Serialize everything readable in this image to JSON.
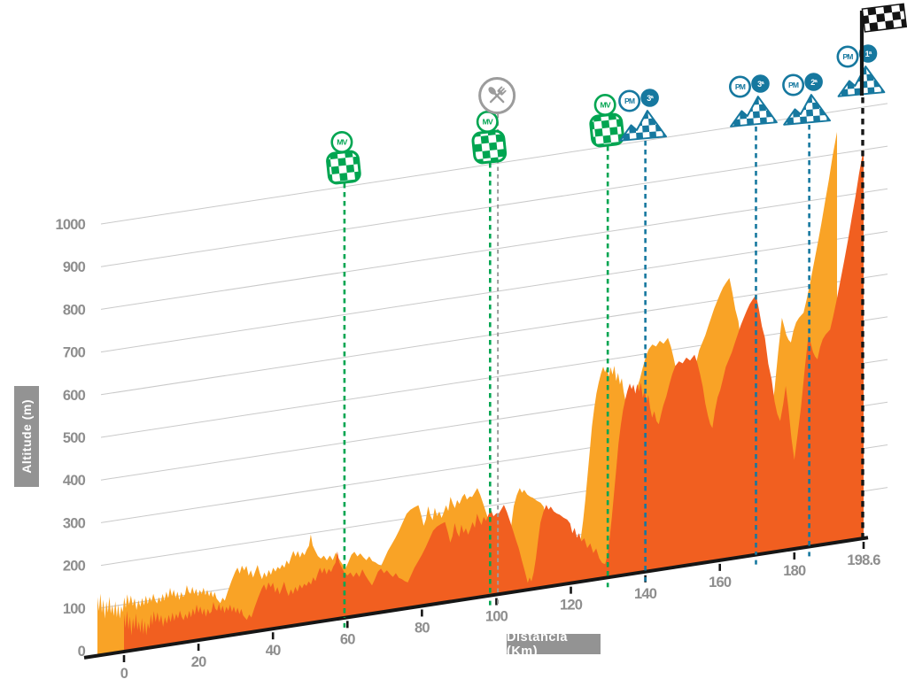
{
  "chart_data": {
    "type": "area",
    "title": "",
    "xlabel": "Distância (Km)",
    "ylabel": "Altitude (m)",
    "x_ticks": [
      0,
      20,
      40,
      60,
      80,
      100,
      120,
      140,
      160,
      180
    ],
    "x_end_label": "198.6",
    "x_max": 198.6,
    "y_ticks": [
      0,
      100,
      200,
      300,
      400,
      500,
      600,
      700,
      800,
      900,
      1000
    ],
    "ylim": [
      0,
      1100
    ],
    "grid": true,
    "series": [
      {
        "name": "elevation-profile",
        "units": {
          "x": "km",
          "y": "m"
        },
        "points": [
          [
            0,
            88
          ],
          [
            0.4,
            55
          ],
          [
            0.8,
            95
          ],
          [
            1.2,
            50
          ],
          [
            1.6,
            80
          ],
          [
            2,
            35
          ],
          [
            2.4,
            75
          ],
          [
            2.8,
            48
          ],
          [
            3.2,
            85
          ],
          [
            3.6,
            45
          ],
          [
            4,
            65
          ],
          [
            4.4,
            38
          ],
          [
            4.8,
            72
          ],
          [
            5.2,
            34
          ],
          [
            5.6,
            64
          ],
          [
            6,
            30
          ],
          [
            6.4,
            58
          ],
          [
            6.8,
            44
          ],
          [
            7.2,
            78
          ],
          [
            7.6,
            52
          ],
          [
            8,
            84
          ],
          [
            8.5,
            58
          ],
          [
            9,
            80
          ],
          [
            9.5,
            55
          ],
          [
            10,
            72
          ],
          [
            10.5,
            44
          ],
          [
            11,
            66
          ],
          [
            11.5,
            50
          ],
          [
            12,
            70
          ],
          [
            12.5,
            52
          ],
          [
            13,
            74
          ],
          [
            13.5,
            54
          ],
          [
            14,
            70
          ],
          [
            14.5,
            58
          ],
          [
            15,
            76
          ],
          [
            15.5,
            60
          ],
          [
            16,
            52
          ],
          [
            16.5,
            66
          ],
          [
            17,
            54
          ],
          [
            17.5,
            72
          ],
          [
            18,
            56
          ],
          [
            18.5,
            76
          ],
          [
            19,
            60
          ],
          [
            19.5,
            84
          ],
          [
            20,
            64
          ],
          [
            20.5,
            78
          ],
          [
            21,
            58
          ],
          [
            21.5,
            72
          ],
          [
            22,
            52
          ],
          [
            22.5,
            70
          ],
          [
            23,
            58
          ],
          [
            23.5,
            62
          ],
          [
            24,
            84
          ],
          [
            24.5,
            68
          ],
          [
            25,
            62
          ],
          [
            25.5,
            78
          ],
          [
            26,
            60
          ],
          [
            26.5,
            72
          ],
          [
            27,
            54
          ],
          [
            27.5,
            68
          ],
          [
            28,
            58
          ],
          [
            28.5,
            72
          ],
          [
            29,
            54
          ],
          [
            29.5,
            66
          ],
          [
            30,
            50
          ],
          [
            30.5,
            62
          ],
          [
            31,
            46
          ],
          [
            31.5,
            58
          ],
          [
            32,
            42
          ],
          [
            32.5,
            36
          ],
          [
            33,
            30
          ],
          [
            33.6,
            42
          ],
          [
            34.2,
            34
          ],
          [
            35,
            55
          ],
          [
            36,
            78
          ],
          [
            37,
            98
          ],
          [
            37.6,
            107
          ],
          [
            38.2,
            92
          ],
          [
            38.8,
            110
          ],
          [
            39.4,
            98
          ],
          [
            40,
            108
          ],
          [
            40.6,
            84
          ],
          [
            41.2,
            96
          ],
          [
            41.8,
            78
          ],
          [
            42.4,
            92
          ],
          [
            43,
            106
          ],
          [
            43.6,
            86
          ],
          [
            44.2,
            71
          ],
          [
            44.8,
            86
          ],
          [
            45.4,
            74
          ],
          [
            46,
            90
          ],
          [
            46.6,
            78
          ],
          [
            47.2,
            94
          ],
          [
            47.8,
            84
          ],
          [
            48.4,
            94
          ],
          [
            49,
            88
          ],
          [
            49.6,
            98
          ],
          [
            50.2,
            90
          ],
          [
            50.8,
            106
          ],
          [
            51.4,
            96
          ],
          [
            52,
            112
          ],
          [
            52.6,
            126
          ],
          [
            53.2,
            112
          ],
          [
            53.8,
            124
          ],
          [
            54.4,
            108
          ],
          [
            55,
            120
          ],
          [
            55.6,
            112
          ],
          [
            56.2,
            124
          ],
          [
            56.8,
            132
          ],
          [
            57.3,
            158
          ],
          [
            57.8,
            132
          ],
          [
            58.4,
            120
          ],
          [
            59.2,
            105
          ],
          [
            60,
            98
          ],
          [
            60.8,
            104
          ],
          [
            61.6,
            92
          ],
          [
            62.4,
            102
          ],
          [
            63.2,
            90
          ],
          [
            64,
            107
          ],
          [
            64.8,
            92
          ],
          [
            65.6,
            80
          ],
          [
            66.6,
            66
          ],
          [
            67.4,
            80
          ],
          [
            68.2,
            96
          ],
          [
            69,
            102
          ],
          [
            69.8,
            90
          ],
          [
            70.6,
            96
          ],
          [
            71.4,
            86
          ],
          [
            72.2,
            78
          ],
          [
            73,
            86
          ],
          [
            73.8,
            74
          ],
          [
            74.6,
            70
          ],
          [
            75.4,
            64
          ],
          [
            76.2,
            60
          ],
          [
            77,
            74
          ],
          [
            78,
            92
          ],
          [
            79,
            106
          ],
          [
            80,
            120
          ],
          [
            81,
            136
          ],
          [
            82,
            154
          ],
          [
            83,
            172
          ],
          [
            84,
            180
          ],
          [
            85,
            184
          ],
          [
            86.2,
            188
          ],
          [
            87,
            162
          ],
          [
            87.6,
            138
          ],
          [
            88.2,
            152
          ],
          [
            88.8,
            182
          ],
          [
            89.4,
            160
          ],
          [
            90,
            148
          ],
          [
            90.6,
            176
          ],
          [
            91.2,
            156
          ],
          [
            91.8,
            166
          ],
          [
            92.4,
            150
          ],
          [
            93,
            162
          ],
          [
            93.6,
            178
          ],
          [
            94.2,
            164
          ],
          [
            94.8,
            196
          ],
          [
            95.4,
            180
          ],
          [
            96,
            168
          ],
          [
            96.6,
            186
          ],
          [
            97.2,
            176
          ],
          [
            98,
            192
          ],
          [
            98.6,
            198
          ],
          [
            99.2,
            184
          ],
          [
            100,
            190
          ],
          [
            100.6,
            188
          ],
          [
            101.2,
            196
          ],
          [
            102,
            207
          ],
          [
            102.8,
            190
          ],
          [
            103.6,
            168
          ],
          [
            104.4,
            146
          ],
          [
            105.2,
            122
          ],
          [
            106,
            100
          ],
          [
            106.8,
            72
          ],
          [
            107.6,
            45
          ],
          [
            108.4,
            16
          ],
          [
            108.9,
            28
          ],
          [
            109.4,
            18
          ],
          [
            110,
            38
          ],
          [
            110.6,
            70
          ],
          [
            111.2,
            112
          ],
          [
            111.8,
            152
          ],
          [
            112.6,
            176
          ],
          [
            113.4,
            192
          ],
          [
            114,
            180
          ],
          [
            114.6,
            186
          ],
          [
            115.4,
            174
          ],
          [
            116.2,
            168
          ],
          [
            117,
            164
          ],
          [
            118,
            156
          ],
          [
            119,
            150
          ],
          [
            119.8,
            140
          ],
          [
            120.4,
            116
          ],
          [
            121,
            128
          ],
          [
            121.6,
            104
          ],
          [
            122.2,
            114
          ],
          [
            122.8,
            94
          ],
          [
            123.6,
            100
          ],
          [
            124.4,
            76
          ],
          [
            125.2,
            86
          ],
          [
            126,
            62
          ],
          [
            126.8,
            72
          ],
          [
            127.6,
            48
          ],
          [
            128.4,
            36
          ],
          [
            129.2,
            32
          ],
          [
            129.8,
            52
          ],
          [
            130.4,
            92
          ],
          [
            131,
            140
          ],
          [
            131.6,
            196
          ],
          [
            132.2,
            252
          ],
          [
            132.8,
            310
          ],
          [
            133.4,
            352
          ],
          [
            134,
            386
          ],
          [
            134.6,
            410
          ],
          [
            135.2,
            430
          ],
          [
            135.8,
            446
          ],
          [
            136.3,
            432
          ],
          [
            136.8,
            442
          ],
          [
            137.3,
            420
          ],
          [
            137.8,
            442
          ],
          [
            138.3,
            424
          ],
          [
            138.8,
            444
          ],
          [
            139.3,
            408
          ],
          [
            139.8,
            426
          ],
          [
            140.3,
            398
          ],
          [
            140.8,
            412
          ],
          [
            141.3,
            380
          ],
          [
            141.8,
            358
          ],
          [
            142.4,
            372
          ],
          [
            143,
            348
          ],
          [
            143.6,
            340
          ],
          [
            144.2,
            362
          ],
          [
            144.8,
            382
          ],
          [
            145.6,
            402
          ],
          [
            146.4,
            428
          ],
          [
            147.2,
            452
          ],
          [
            148,
            470
          ],
          [
            149,
            480
          ],
          [
            150,
            474
          ],
          [
            151,
            486
          ],
          [
            152,
            478
          ],
          [
            153.2,
            490
          ],
          [
            154,
            468
          ],
          [
            154.7,
            442
          ],
          [
            155.4,
            412
          ],
          [
            156.1,
            372
          ],
          [
            156.8,
            342
          ],
          [
            157.4,
            322
          ],
          [
            158,
            312
          ],
          [
            158.7,
            352
          ],
          [
            159.4,
            382
          ],
          [
            160.1,
            398
          ],
          [
            160.8,
            422
          ],
          [
            161.6,
            450
          ],
          [
            162.4,
            466
          ],
          [
            163.2,
            482
          ],
          [
            164,
            502
          ],
          [
            164.8,
            522
          ],
          [
            165.6,
            542
          ],
          [
            166.4,
            558
          ],
          [
            167.2,
            574
          ],
          [
            168,
            588
          ],
          [
            168.8,
            598
          ],
          [
            169.7,
            608
          ],
          [
            170.5,
            572
          ],
          [
            171.3,
            532
          ],
          [
            172.1,
            504
          ],
          [
            173,
            442
          ],
          [
            173.9,
            404
          ],
          [
            174.7,
            352
          ],
          [
            175.4,
            322
          ],
          [
            176.2,
            304
          ],
          [
            177,
            342
          ],
          [
            177.7,
            384
          ],
          [
            178.4,
            332
          ],
          [
            179.2,
            262
          ],
          [
            180,
            208
          ],
          [
            180.9,
            268
          ],
          [
            181.8,
            330
          ],
          [
            182.8,
            418
          ],
          [
            183.8,
            496
          ],
          [
            184.5,
            472
          ],
          [
            185,
            454
          ],
          [
            185.6,
            442
          ],
          [
            186.2,
            435
          ],
          [
            186.9,
            462
          ],
          [
            187.6,
            480
          ],
          [
            188.4,
            490
          ],
          [
            189.6,
            500
          ],
          [
            190.4,
            528
          ],
          [
            191.4,
            568
          ],
          [
            192.4,
            612
          ],
          [
            193.4,
            656
          ],
          [
            194.4,
            702
          ],
          [
            195.4,
            752
          ],
          [
            196.4,
            802
          ],
          [
            197.4,
            856
          ],
          [
            198.6,
            911
          ]
        ]
      }
    ],
    "markers": [
      {
        "kind": "sprint",
        "label": "MV",
        "km": 59.2,
        "icon_y": 189
      },
      {
        "kind": "sprint",
        "label": "MV",
        "km": 98.3,
        "icon_y": 166
      },
      {
        "kind": "feed",
        "km": 100.4,
        "icon_y": 108
      },
      {
        "kind": "sprint",
        "label": "MV",
        "km": 129.9,
        "icon_y": 147
      },
      {
        "kind": "climb",
        "label": "PM",
        "category": "3ª",
        "km": 140,
        "icon_y": 157
      },
      {
        "kind": "climb",
        "label": "PM",
        "category": "3ª",
        "km": 169.7,
        "icon_y": 141
      },
      {
        "kind": "climb",
        "label": "PM",
        "category": "2ª",
        "km": 184,
        "icon_y": 139
      },
      {
        "kind": "climb",
        "label": "PM",
        "category": "1ª",
        "km": 198.6,
        "icon_y": 107,
        "no_line": true
      },
      {
        "kind": "finish",
        "km": 198.6,
        "icon_y": 12
      }
    ],
    "colors": {
      "profile_back": "#F9A326",
      "profile_front": "#F15F20",
      "sprint_green": "#00A551",
      "climb_blue": "#16789F",
      "feed_gray": "#9C9C9C",
      "axis_text_gray": "#8E8E8E",
      "label_box_gray": "#939393",
      "gridline": "#C9C9C9",
      "baseline_black": "#161616"
    },
    "legend": null
  }
}
